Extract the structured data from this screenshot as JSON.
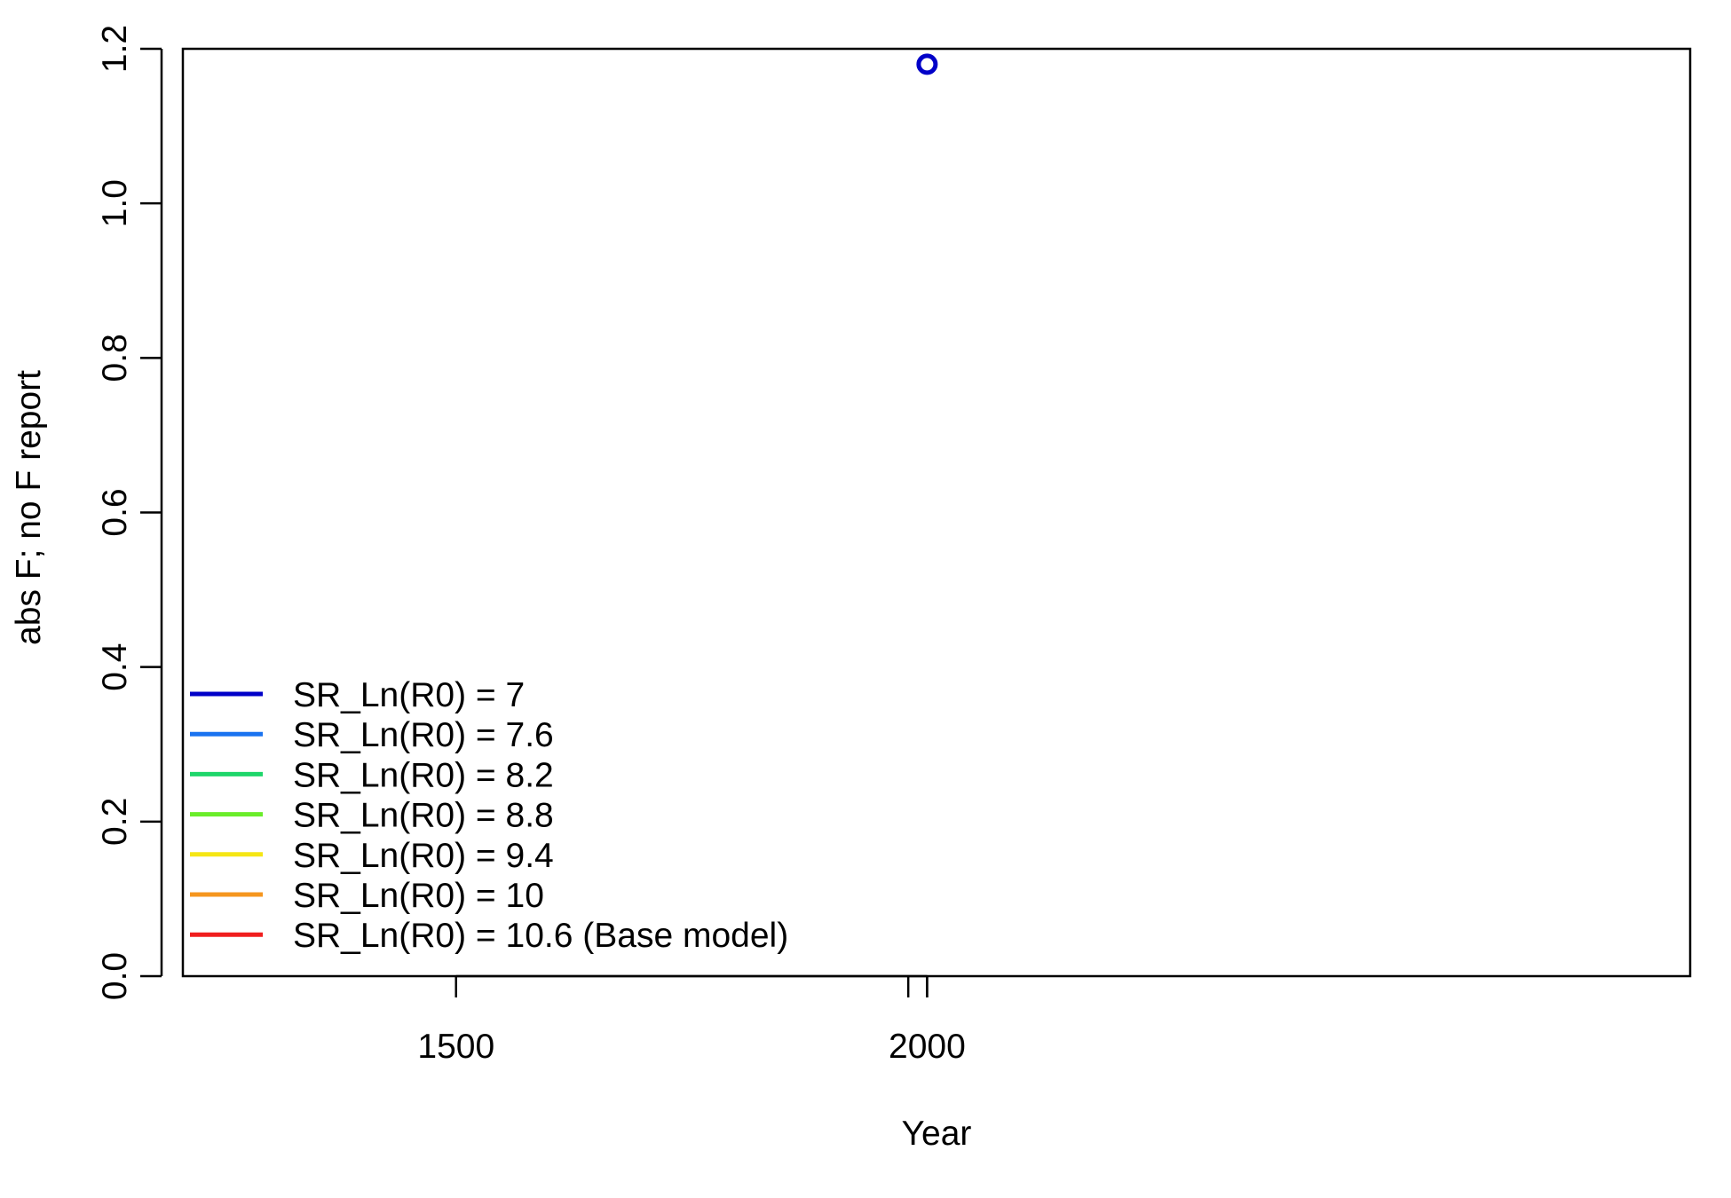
{
  "chart_data": {
    "type": "line",
    "title": "",
    "xlabel": "Year",
    "ylabel": "abs F; no F report",
    "xlim": [
      1210,
      2810
    ],
    "ylim": [
      0,
      1.2
    ],
    "x_ticks": [
      {
        "value": 1500,
        "label": "1500"
      },
      {
        "value": 2000,
        "label": "2000"
      }
    ],
    "x_minor_ticks": [
      1980,
      2000
    ],
    "y_ticks": [
      {
        "value": 0.0,
        "label": "0.0"
      },
      {
        "value": 0.2,
        "label": "0.2"
      },
      {
        "value": 0.4,
        "label": "0.4"
      },
      {
        "value": 0.6,
        "label": "0.6"
      },
      {
        "value": 0.8,
        "label": "0.8"
      },
      {
        "value": 1.0,
        "label": "1.0"
      },
      {
        "value": 1.2,
        "label": "1.2"
      }
    ],
    "grid": false,
    "legend_position": "bottom-left",
    "series": [
      {
        "name": "SR_Ln(R0) =  7",
        "color": "#0000c8",
        "points": [
          {
            "x": 2000,
            "y": 1.18
          }
        ]
      },
      {
        "name": "SR_Ln(R0) =  7.6",
        "color": "#1a73f0",
        "points": []
      },
      {
        "name": "SR_Ln(R0) =  8.2",
        "color": "#1ed66a",
        "points": []
      },
      {
        "name": "SR_Ln(R0) =  8.8",
        "color": "#6aed2a",
        "points": []
      },
      {
        "name": "SR_Ln(R0) =  9.4",
        "color": "#f5e614",
        "points": []
      },
      {
        "name": "SR_Ln(R0) =  10",
        "color": "#f5961e",
        "points": []
      },
      {
        "name": "SR_Ln(R0) =  10.6 (Base model)",
        "color": "#f01e1e",
        "points": []
      }
    ]
  }
}
